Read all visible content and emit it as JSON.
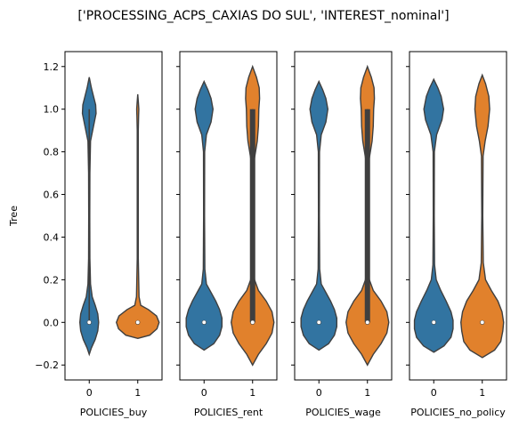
{
  "suptitle": "['PROCESSING_ACPS_CAXIAS DO SUL', 'INTEREST_nominal']",
  "colors": {
    "class_0": "#3274a1",
    "class_1": "#e1812c",
    "outline": "#3f3f3f",
    "median": "#ffffff"
  },
  "chart_data": [
    {
      "type": "violin",
      "xlabel": "POLICIES_buy",
      "ylabel": "Tree",
      "categories": [
        "0",
        "1"
      ],
      "ylim": [
        -0.27,
        1.27
      ],
      "yticks": [
        -0.2,
        0.0,
        0.2,
        0.4,
        0.6,
        0.8,
        1.0,
        1.2
      ],
      "yticklabels": [
        "−0.2",
        "0.0",
        "0.2",
        "0.4",
        "0.6",
        "0.8",
        "1.0",
        "1.2"
      ],
      "series": [
        {
          "category": "0",
          "color": "class_0",
          "median": 0.0,
          "box": {
            "q1": 0.0,
            "q3": 0.0,
            "whisker_low": 0.0,
            "whisker_high": 1.0
          },
          "profile": [
            [
              -0.15,
              0.0
            ],
            [
              -0.12,
              0.05
            ],
            [
              -0.08,
              0.14
            ],
            [
              -0.04,
              0.2
            ],
            [
              0.0,
              0.22
            ],
            [
              0.04,
              0.2
            ],
            [
              0.08,
              0.14
            ],
            [
              0.12,
              0.07
            ],
            [
              0.18,
              0.03
            ],
            [
              0.3,
              0.015
            ],
            [
              0.5,
              0.012
            ],
            [
              0.7,
              0.015
            ],
            [
              0.85,
              0.03
            ],
            [
              0.92,
              0.1
            ],
            [
              0.98,
              0.16
            ],
            [
              1.02,
              0.15
            ],
            [
              1.06,
              0.1
            ],
            [
              1.1,
              0.05
            ],
            [
              1.15,
              0.0
            ]
          ]
        },
        {
          "category": "1",
          "color": "class_1",
          "median": 0.0,
          "box": {
            "q1": 0.0,
            "q3": 0.0,
            "whisker_low": 0.0,
            "whisker_high": 0.0
          },
          "profile": [
            [
              -0.075,
              0.0
            ],
            [
              -0.06,
              0.28
            ],
            [
              -0.03,
              0.45
            ],
            [
              0.0,
              0.5
            ],
            [
              0.03,
              0.44
            ],
            [
              0.06,
              0.25
            ],
            [
              0.08,
              0.07
            ],
            [
              0.12,
              0.03
            ],
            [
              0.3,
              0.012
            ],
            [
              0.6,
              0.012
            ],
            [
              0.9,
              0.012
            ],
            [
              0.97,
              0.02
            ],
            [
              1.0,
              0.025
            ],
            [
              1.03,
              0.015
            ],
            [
              1.07,
              0.0
            ]
          ]
        }
      ]
    },
    {
      "type": "violin",
      "xlabel": "POLICIES_rent",
      "ylabel": "",
      "categories": [
        "0",
        "1"
      ],
      "ylim": [
        -0.27,
        1.27
      ],
      "series": [
        {
          "category": "0",
          "color": "class_0",
          "median": 0.0,
          "box": {
            "q1": 0.0,
            "q3": 0.0,
            "whisker_low": 0.0,
            "whisker_high": 0.0
          },
          "profile": [
            [
              -0.13,
              0.0
            ],
            [
              -0.1,
              0.25
            ],
            [
              -0.06,
              0.4
            ],
            [
              -0.02,
              0.46
            ],
            [
              0.02,
              0.46
            ],
            [
              0.06,
              0.4
            ],
            [
              0.1,
              0.3
            ],
            [
              0.14,
              0.18
            ],
            [
              0.18,
              0.06
            ],
            [
              0.25,
              0.02
            ],
            [
              0.5,
              0.012
            ],
            [
              0.8,
              0.015
            ],
            [
              0.88,
              0.06
            ],
            [
              0.94,
              0.18
            ],
            [
              1.0,
              0.23
            ],
            [
              1.05,
              0.18
            ],
            [
              1.09,
              0.1
            ],
            [
              1.13,
              0.0
            ]
          ]
        },
        {
          "category": "1",
          "color": "class_1",
          "median": 0.0,
          "box": {
            "q1": 0.0,
            "q3": 1.0,
            "whisker_low": 0.0,
            "whisker_high": 1.0
          },
          "profile": [
            [
              -0.2,
              0.0
            ],
            [
              -0.15,
              0.15
            ],
            [
              -0.1,
              0.35
            ],
            [
              -0.05,
              0.5
            ],
            [
              0.0,
              0.55
            ],
            [
              0.05,
              0.5
            ],
            [
              0.1,
              0.35
            ],
            [
              0.15,
              0.15
            ],
            [
              0.2,
              0.05
            ],
            [
              0.3,
              0.02
            ],
            [
              0.5,
              0.012
            ],
            [
              0.75,
              0.03
            ],
            [
              0.85,
              0.12
            ],
            [
              0.92,
              0.15
            ],
            [
              1.0,
              0.16
            ],
            [
              1.05,
              0.18
            ],
            [
              1.1,
              0.17
            ],
            [
              1.15,
              0.1
            ],
            [
              1.2,
              0.0
            ]
          ]
        }
      ]
    },
    {
      "type": "violin",
      "xlabel": "POLICIES_wage",
      "ylabel": "",
      "categories": [
        "0",
        "1"
      ],
      "ylim": [
        -0.27,
        1.27
      ],
      "series": [
        {
          "category": "0",
          "color": "class_0",
          "median": 0.0,
          "box": {
            "q1": 0.0,
            "q3": 0.0,
            "whisker_low": 0.0,
            "whisker_high": 0.0
          },
          "profile": [
            [
              -0.13,
              0.0
            ],
            [
              -0.1,
              0.25
            ],
            [
              -0.06,
              0.4
            ],
            [
              -0.02,
              0.46
            ],
            [
              0.02,
              0.46
            ],
            [
              0.06,
              0.4
            ],
            [
              0.1,
              0.3
            ],
            [
              0.14,
              0.18
            ],
            [
              0.18,
              0.06
            ],
            [
              0.25,
              0.02
            ],
            [
              0.5,
              0.012
            ],
            [
              0.8,
              0.015
            ],
            [
              0.88,
              0.06
            ],
            [
              0.94,
              0.18
            ],
            [
              1.0,
              0.23
            ],
            [
              1.05,
              0.18
            ],
            [
              1.09,
              0.1
            ],
            [
              1.13,
              0.0
            ]
          ]
        },
        {
          "category": "1",
          "color": "class_1",
          "median": 0.0,
          "box": {
            "q1": 0.0,
            "q3": 1.0,
            "whisker_low": 0.0,
            "whisker_high": 1.0
          },
          "profile": [
            [
              -0.2,
              0.0
            ],
            [
              -0.15,
              0.15
            ],
            [
              -0.1,
              0.35
            ],
            [
              -0.05,
              0.5
            ],
            [
              0.0,
              0.55
            ],
            [
              0.05,
              0.5
            ],
            [
              0.1,
              0.35
            ],
            [
              0.15,
              0.15
            ],
            [
              0.2,
              0.05
            ],
            [
              0.3,
              0.02
            ],
            [
              0.5,
              0.012
            ],
            [
              0.75,
              0.03
            ],
            [
              0.85,
              0.12
            ],
            [
              0.92,
              0.15
            ],
            [
              1.0,
              0.16
            ],
            [
              1.05,
              0.18
            ],
            [
              1.1,
              0.17
            ],
            [
              1.15,
              0.1
            ],
            [
              1.2,
              0.0
            ]
          ]
        }
      ]
    },
    {
      "type": "violin",
      "xlabel": "POLICIES_no_policy",
      "ylabel": "",
      "categories": [
        "0",
        "1"
      ],
      "ylim": [
        -0.27,
        1.27
      ],
      "series": [
        {
          "category": "0",
          "color": "class_0",
          "median": 0.0,
          "box": {
            "q1": 0.0,
            "q3": 0.0,
            "whisker_low": 0.0,
            "whisker_high": 0.0
          },
          "profile": [
            [
              -0.14,
              0.0
            ],
            [
              -0.11,
              0.25
            ],
            [
              -0.07,
              0.42
            ],
            [
              -0.03,
              0.47
            ],
            [
              0.01,
              0.47
            ],
            [
              0.05,
              0.42
            ],
            [
              0.1,
              0.3
            ],
            [
              0.15,
              0.17
            ],
            [
              0.2,
              0.06
            ],
            [
              0.27,
              0.02
            ],
            [
              0.5,
              0.012
            ],
            [
              0.8,
              0.015
            ],
            [
              0.88,
              0.07
            ],
            [
              0.95,
              0.2
            ],
            [
              1.0,
              0.24
            ],
            [
              1.06,
              0.18
            ],
            [
              1.1,
              0.1
            ],
            [
              1.14,
              0.0
            ]
          ]
        },
        {
          "category": "1",
          "color": "class_1",
          "median": 0.0,
          "box": {
            "q1": 0.0,
            "q3": 0.0,
            "whisker_low": 0.0,
            "whisker_high": 0.0
          },
          "profile": [
            [
              -0.165,
              0.0
            ],
            [
              -0.13,
              0.3
            ],
            [
              -0.09,
              0.45
            ],
            [
              -0.04,
              0.5
            ],
            [
              0.0,
              0.52
            ],
            [
              0.05,
              0.48
            ],
            [
              0.1,
              0.38
            ],
            [
              0.15,
              0.22
            ],
            [
              0.2,
              0.08
            ],
            [
              0.28,
              0.025
            ],
            [
              0.5,
              0.012
            ],
            [
              0.78,
              0.02
            ],
            [
              0.85,
              0.07
            ],
            [
              0.92,
              0.14
            ],
            [
              1.0,
              0.18
            ],
            [
              1.06,
              0.16
            ],
            [
              1.12,
              0.08
            ],
            [
              1.16,
              0.0
            ]
          ]
        }
      ]
    }
  ]
}
